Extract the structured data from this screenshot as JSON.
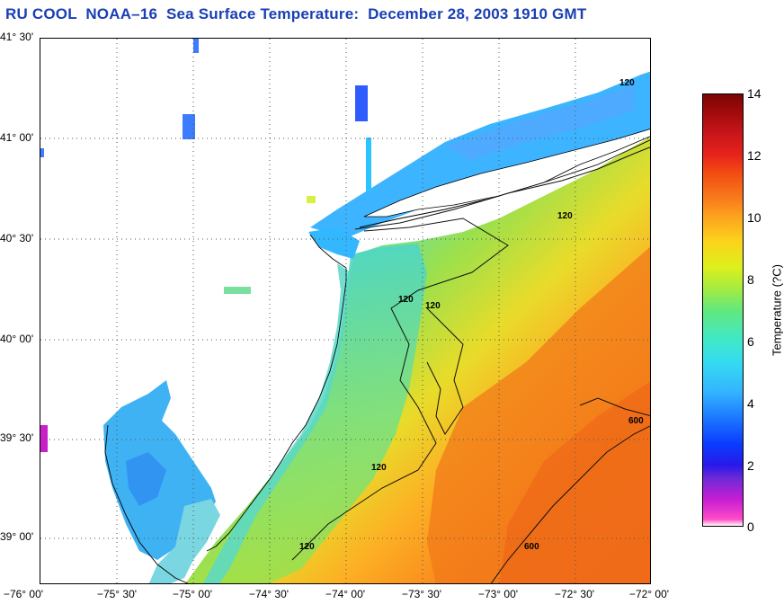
{
  "title": "RU COOL  NOAA–16  Sea Surface Temperature:  December 28, 2003 1910 GMT",
  "map": {
    "lat_labels": [
      "41° 30'",
      "41° 00'",
      "40° 30'",
      "40° 00'",
      "39° 30'",
      "39° 00'"
    ],
    "lon_labels": [
      "−76° 00'",
      "−75° 30'",
      "−75° 00'",
      "−74° 30'",
      "−74° 00'",
      "−73° 30'",
      "−73° 00'",
      "−72° 30'",
      "−72° 00'"
    ],
    "contour_labels": [
      "120",
      "120",
      "120",
      "120",
      "120",
      "120",
      "600",
      "600"
    ],
    "colors": {
      "land": "#ffffff",
      "cold_water": "#3fb8ff",
      "mid_water": "#9be04a",
      "warm_water": "#f8781c"
    }
  },
  "colorbar": {
    "ticks": [
      "14",
      "12",
      "10",
      "8",
      "6",
      "4",
      "2",
      "0"
    ],
    "label": "Temperature (?C)"
  }
}
